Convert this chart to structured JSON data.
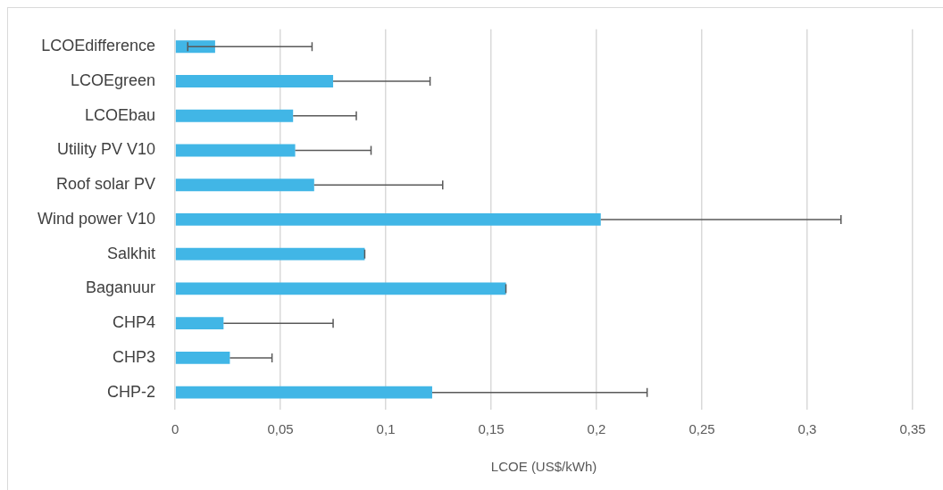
{
  "chart_data": {
    "type": "bar",
    "orientation": "horizontal",
    "xlabel": "LCOE (US$/kWh)",
    "categories": [
      "LCOEdifference",
      "LCOEgreen",
      "LCOEbau",
      "Utility PV V10",
      "Roof solar PV",
      "Wind power V10",
      "Salkhit",
      "Baganuur",
      "CHP4",
      "CHP3",
      "CHP-2"
    ],
    "values": [
      0.019,
      0.075,
      0.056,
      0.057,
      0.066,
      0.202,
      0.09,
      0.157,
      0.023,
      0.026,
      0.122
    ],
    "errors": [
      [
        0.006,
        0.065
      ],
      [
        0.075,
        0.121
      ],
      [
        0.056,
        0.086
      ],
      [
        0.057,
        0.093
      ],
      [
        0.066,
        0.127
      ],
      [
        0.202,
        0.316
      ],
      [
        0.09,
        0.09
      ],
      [
        0.157,
        0.157
      ],
      [
        0.023,
        0.075
      ],
      [
        0.026,
        0.046
      ],
      [
        0.122,
        0.224
      ]
    ],
    "color": "#41b6e6",
    "xlim": [
      0,
      0.35
    ],
    "xticks": [
      0,
      {
        "value": 0.05,
        "label": "0,05"
      },
      {
        "value": 0.1,
        "label": "0,1"
      },
      {
        "value": 0.15,
        "label": "0,15"
      },
      {
        "value": 0.2,
        "label": "0,2"
      },
      {
        "value": 0.25,
        "label": "0,25"
      },
      {
        "value": 0.3,
        "label": "0,3"
      },
      {
        "value": 0.35,
        "label": "0,35"
      }
    ],
    "grid": "x",
    "legend": false
  }
}
